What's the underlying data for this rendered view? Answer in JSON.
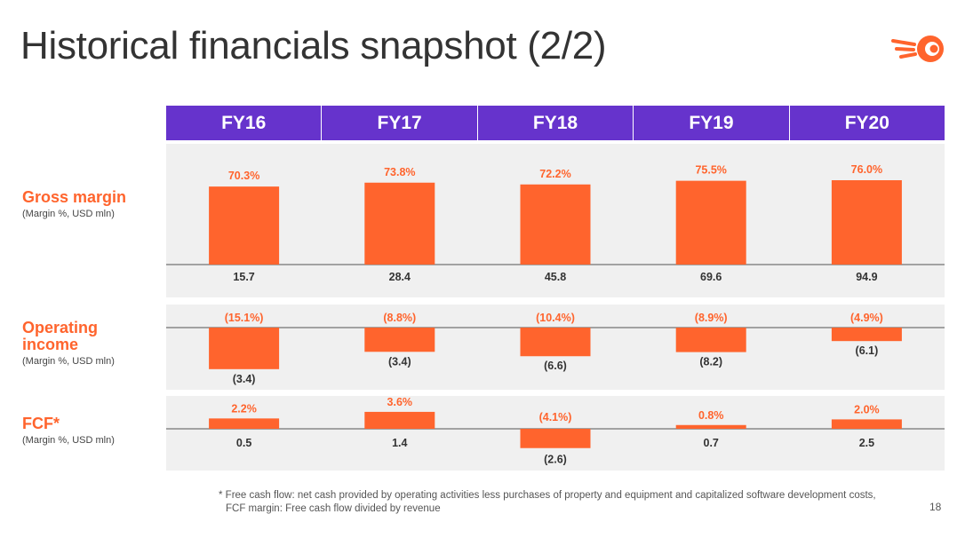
{
  "title": "Historical financials snapshot (2/2)",
  "brand_color": "#FF642D",
  "header_color": "#6633CC",
  "icons": {
    "logo": "semrush-logo-icon"
  },
  "chart_data": {
    "type": "bar",
    "categories": [
      "FY16",
      "FY17",
      "FY18",
      "FY19",
      "FY20"
    ],
    "panels": [
      {
        "id": "gross",
        "label": "Gross margin",
        "sublabel": "(Margin %, USD mln)",
        "margins": [
          70.3,
          73.8,
          72.2,
          75.5,
          76.0
        ],
        "margin_labels": [
          "70.3%",
          "73.8%",
          "72.2%",
          "75.5%",
          "76.0%"
        ],
        "values": [
          15.7,
          28.4,
          45.8,
          69.6,
          94.9
        ],
        "value_labels": [
          "15.7",
          "28.4",
          "45.8",
          "69.6",
          "94.9"
        ]
      },
      {
        "id": "operating",
        "label": "Operating income",
        "sublabel": "(Margin %, USD mln)",
        "margins": [
          -15.1,
          -8.8,
          -10.4,
          -8.9,
          -4.9
        ],
        "margin_labels": [
          "(15.1%)",
          "(8.8%)",
          "(10.4%)",
          "(8.9%)",
          "(4.9%)"
        ],
        "values": [
          -3.4,
          -3.4,
          -6.6,
          -8.2,
          -6.1
        ],
        "value_labels": [
          "(3.4)",
          "(3.4)",
          "(6.6)",
          "(8.2)",
          "(6.1)"
        ]
      },
      {
        "id": "fcf",
        "label": "FCF*",
        "sublabel": "(Margin %, USD mln)",
        "margins": [
          2.2,
          3.6,
          -4.1,
          0.8,
          2.0
        ],
        "margin_labels": [
          "2.2%",
          "3.6%",
          "(4.1%)",
          "0.8%",
          "2.0%"
        ],
        "values": [
          0.5,
          1.4,
          -2.6,
          0.7,
          2.5
        ],
        "value_labels": [
          "0.5",
          "1.4",
          "(2.6)",
          "0.7",
          "2.5"
        ]
      }
    ]
  },
  "footnote": {
    "line1": "* Free cash flow: net cash provided by operating activities less purchases of property and equipment and capitalized software development costs,",
    "line2": "FCF margin: Free cash flow divided by revenue"
  },
  "page_number": "18"
}
